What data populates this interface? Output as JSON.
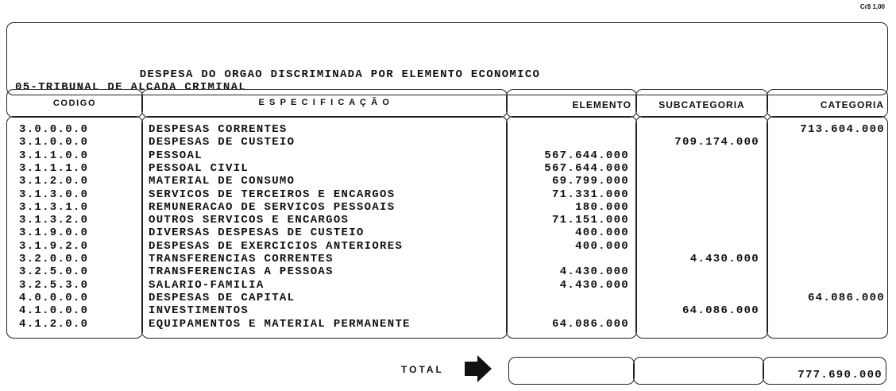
{
  "currency_note": "Cr$ 1,00",
  "header": {
    "title": "DESPESA DO ORGAO DISCRIMINADA POR ELEMENTO ECONOMICO",
    "subtitle": "05-TRIBUNAL DE ALCADA CRIMINAL"
  },
  "table": {
    "columns": [
      "CODIGO",
      "E S P E C I F I C A Ç Ã O",
      "ELEMENTO",
      "SUBCATEGORIA",
      "CATEGORIA"
    ],
    "rows": [
      {
        "codigo": "3.0.0.0.0",
        "especificacao": "DESPESAS CORRENTES",
        "elemento": "",
        "subcategoria": "",
        "categoria": "713.604.000"
      },
      {
        "codigo": "3.1.0.0.0",
        "especificacao": "DESPESAS DE CUSTEIO",
        "elemento": "",
        "subcategoria": "709.174.000",
        "categoria": ""
      },
      {
        "codigo": "3.1.1.0.0",
        "especificacao": "PESSOAL",
        "elemento": "567.644.000",
        "subcategoria": "",
        "categoria": ""
      },
      {
        "codigo": "3.1.1.1.0",
        "especificacao": "PESSOAL CIVIL",
        "elemento": "567.644.000",
        "subcategoria": "",
        "categoria": ""
      },
      {
        "codigo": "3.1.2.0.0",
        "especificacao": "MATERIAL DE CONSUMO",
        "elemento": "69.799.000",
        "subcategoria": "",
        "categoria": ""
      },
      {
        "codigo": "3.1.3.0.0",
        "especificacao": "SERVICOS DE TERCEIROS E ENCARGOS",
        "elemento": "71.331.000",
        "subcategoria": "",
        "categoria": ""
      },
      {
        "codigo": "3.1.3.1.0",
        "especificacao": "REMUNERACAO DE SERVICOS PESSOAIS",
        "elemento": "180.000",
        "subcategoria": "",
        "categoria": ""
      },
      {
        "codigo": "3.1.3.2.0",
        "especificacao": "OUTROS SERVICOS E ENCARGOS",
        "elemento": "71.151.000",
        "subcategoria": "",
        "categoria": ""
      },
      {
        "codigo": "3.1.9.0.0",
        "especificacao": "DIVERSAS DESPESAS DE CUSTEIO",
        "elemento": "400.000",
        "subcategoria": "",
        "categoria": ""
      },
      {
        "codigo": "3.1.9.2.0",
        "especificacao": "DESPESAS DE EXERCICIOS ANTERIORES",
        "elemento": "400.000",
        "subcategoria": "",
        "categoria": ""
      },
      {
        "codigo": "3.2.0.0.0",
        "especificacao": "TRANSFERENCIAS CORRENTES",
        "elemento": "",
        "subcategoria": "4.430.000",
        "categoria": ""
      },
      {
        "codigo": "3.2.5.0.0",
        "especificacao": "TRANSFERENCIAS A PESSOAS",
        "elemento": "4.430.000",
        "subcategoria": "",
        "categoria": ""
      },
      {
        "codigo": "3.2.5.3.0",
        "especificacao": "SALARIO-FAMILIA",
        "elemento": "4.430.000",
        "subcategoria": "",
        "categoria": ""
      },
      {
        "codigo": "4.0.0.0.0",
        "especificacao": "DESPESAS DE CAPITAL",
        "elemento": "",
        "subcategoria": "",
        "categoria": "64.086.000"
      },
      {
        "codigo": "4.1.0.0.0",
        "especificacao": "INVESTIMENTOS",
        "elemento": "",
        "subcategoria": "64.086.000",
        "categoria": ""
      },
      {
        "codigo": "4.1.2.0.0",
        "especificacao": "EQUIPAMENTOS E MATERIAL PERMANENTE",
        "elemento": "64.086.000",
        "subcategoria": "",
        "categoria": ""
      }
    ]
  },
  "total": {
    "label": "TOTAL",
    "icon": "arrow-right-icon",
    "elemento": "",
    "subcategoria": "",
    "categoria": "777.690.000"
  }
}
